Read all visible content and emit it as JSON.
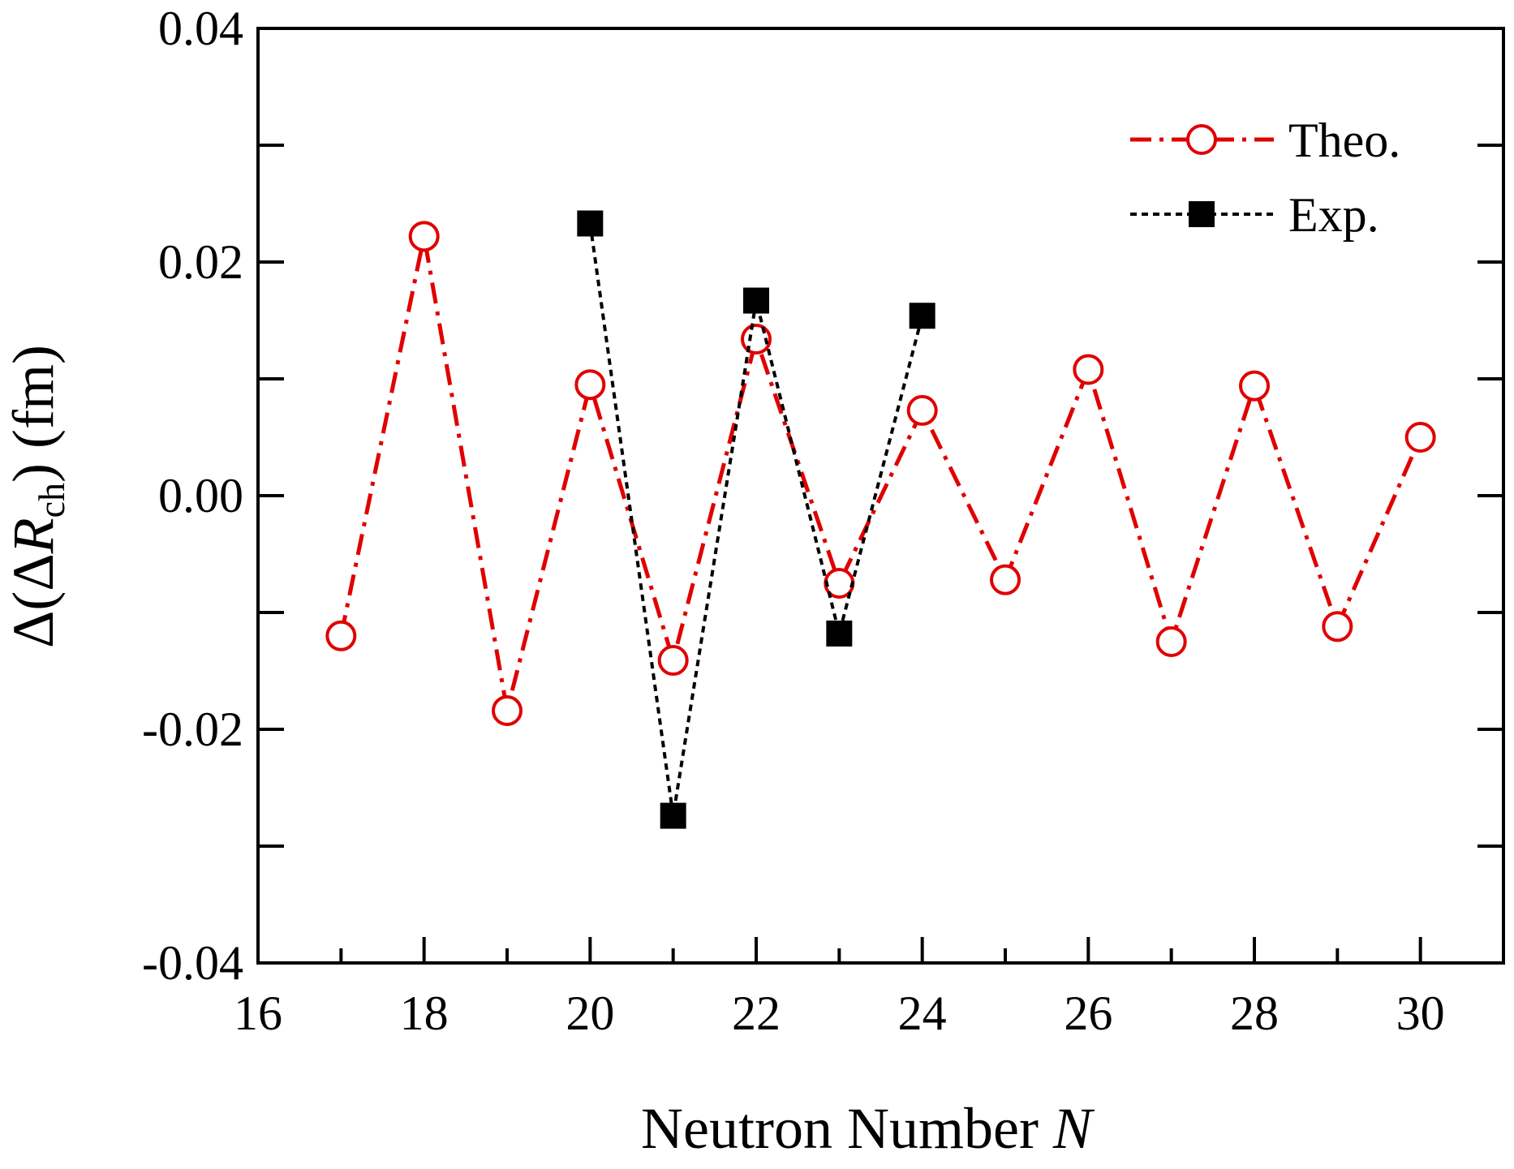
{
  "chart_data": {
    "type": "line",
    "title": "",
    "xlabel": {
      "text": "Neutron Number ",
      "var": "N"
    },
    "ylabel": {
      "pre": "Δ(Δ",
      "var": "R",
      "sub": "ch",
      "post": ") (fm)"
    },
    "xlim": [
      16,
      31
    ],
    "ylim": [
      -0.04,
      0.04
    ],
    "xticks": [
      16,
      18,
      20,
      22,
      24,
      26,
      28,
      30
    ],
    "xtick_labels": [
      "16",
      "18",
      "20",
      "22",
      "24",
      "26",
      "28",
      "30"
    ],
    "xminor": [
      17,
      19,
      21,
      23,
      25,
      27,
      29
    ],
    "yticks": [
      -0.04,
      -0.02,
      0.0,
      0.02,
      0.04
    ],
    "ytick_labels": [
      "-0.04",
      "-0.02",
      "0.00",
      "0.02",
      "0.04"
    ],
    "yminor": [
      -0.03,
      -0.01,
      0.01,
      0.03
    ],
    "grid": false,
    "legend": "top-right",
    "series": [
      {
        "name": "Theo.",
        "color": "#e00000",
        "marker": "open-circle",
        "line": "dash-dot",
        "x": [
          17,
          18,
          19,
          20,
          21,
          22,
          23,
          24,
          25,
          26,
          27,
          28,
          29,
          30
        ],
        "y": [
          -0.012,
          0.0222,
          -0.0184,
          0.0095,
          -0.0141,
          0.0134,
          -0.0075,
          0.0073,
          -0.0072,
          0.0108,
          -0.0125,
          0.0094,
          -0.0112,
          0.005
        ]
      },
      {
        "name": "Exp.",
        "color": "#000000",
        "marker": "filled-square",
        "line": "dotted",
        "x": [
          20,
          21,
          22,
          23,
          24
        ],
        "y": [
          0.0233,
          -0.0274,
          0.0167,
          -0.0118,
          0.0154
        ]
      }
    ]
  }
}
